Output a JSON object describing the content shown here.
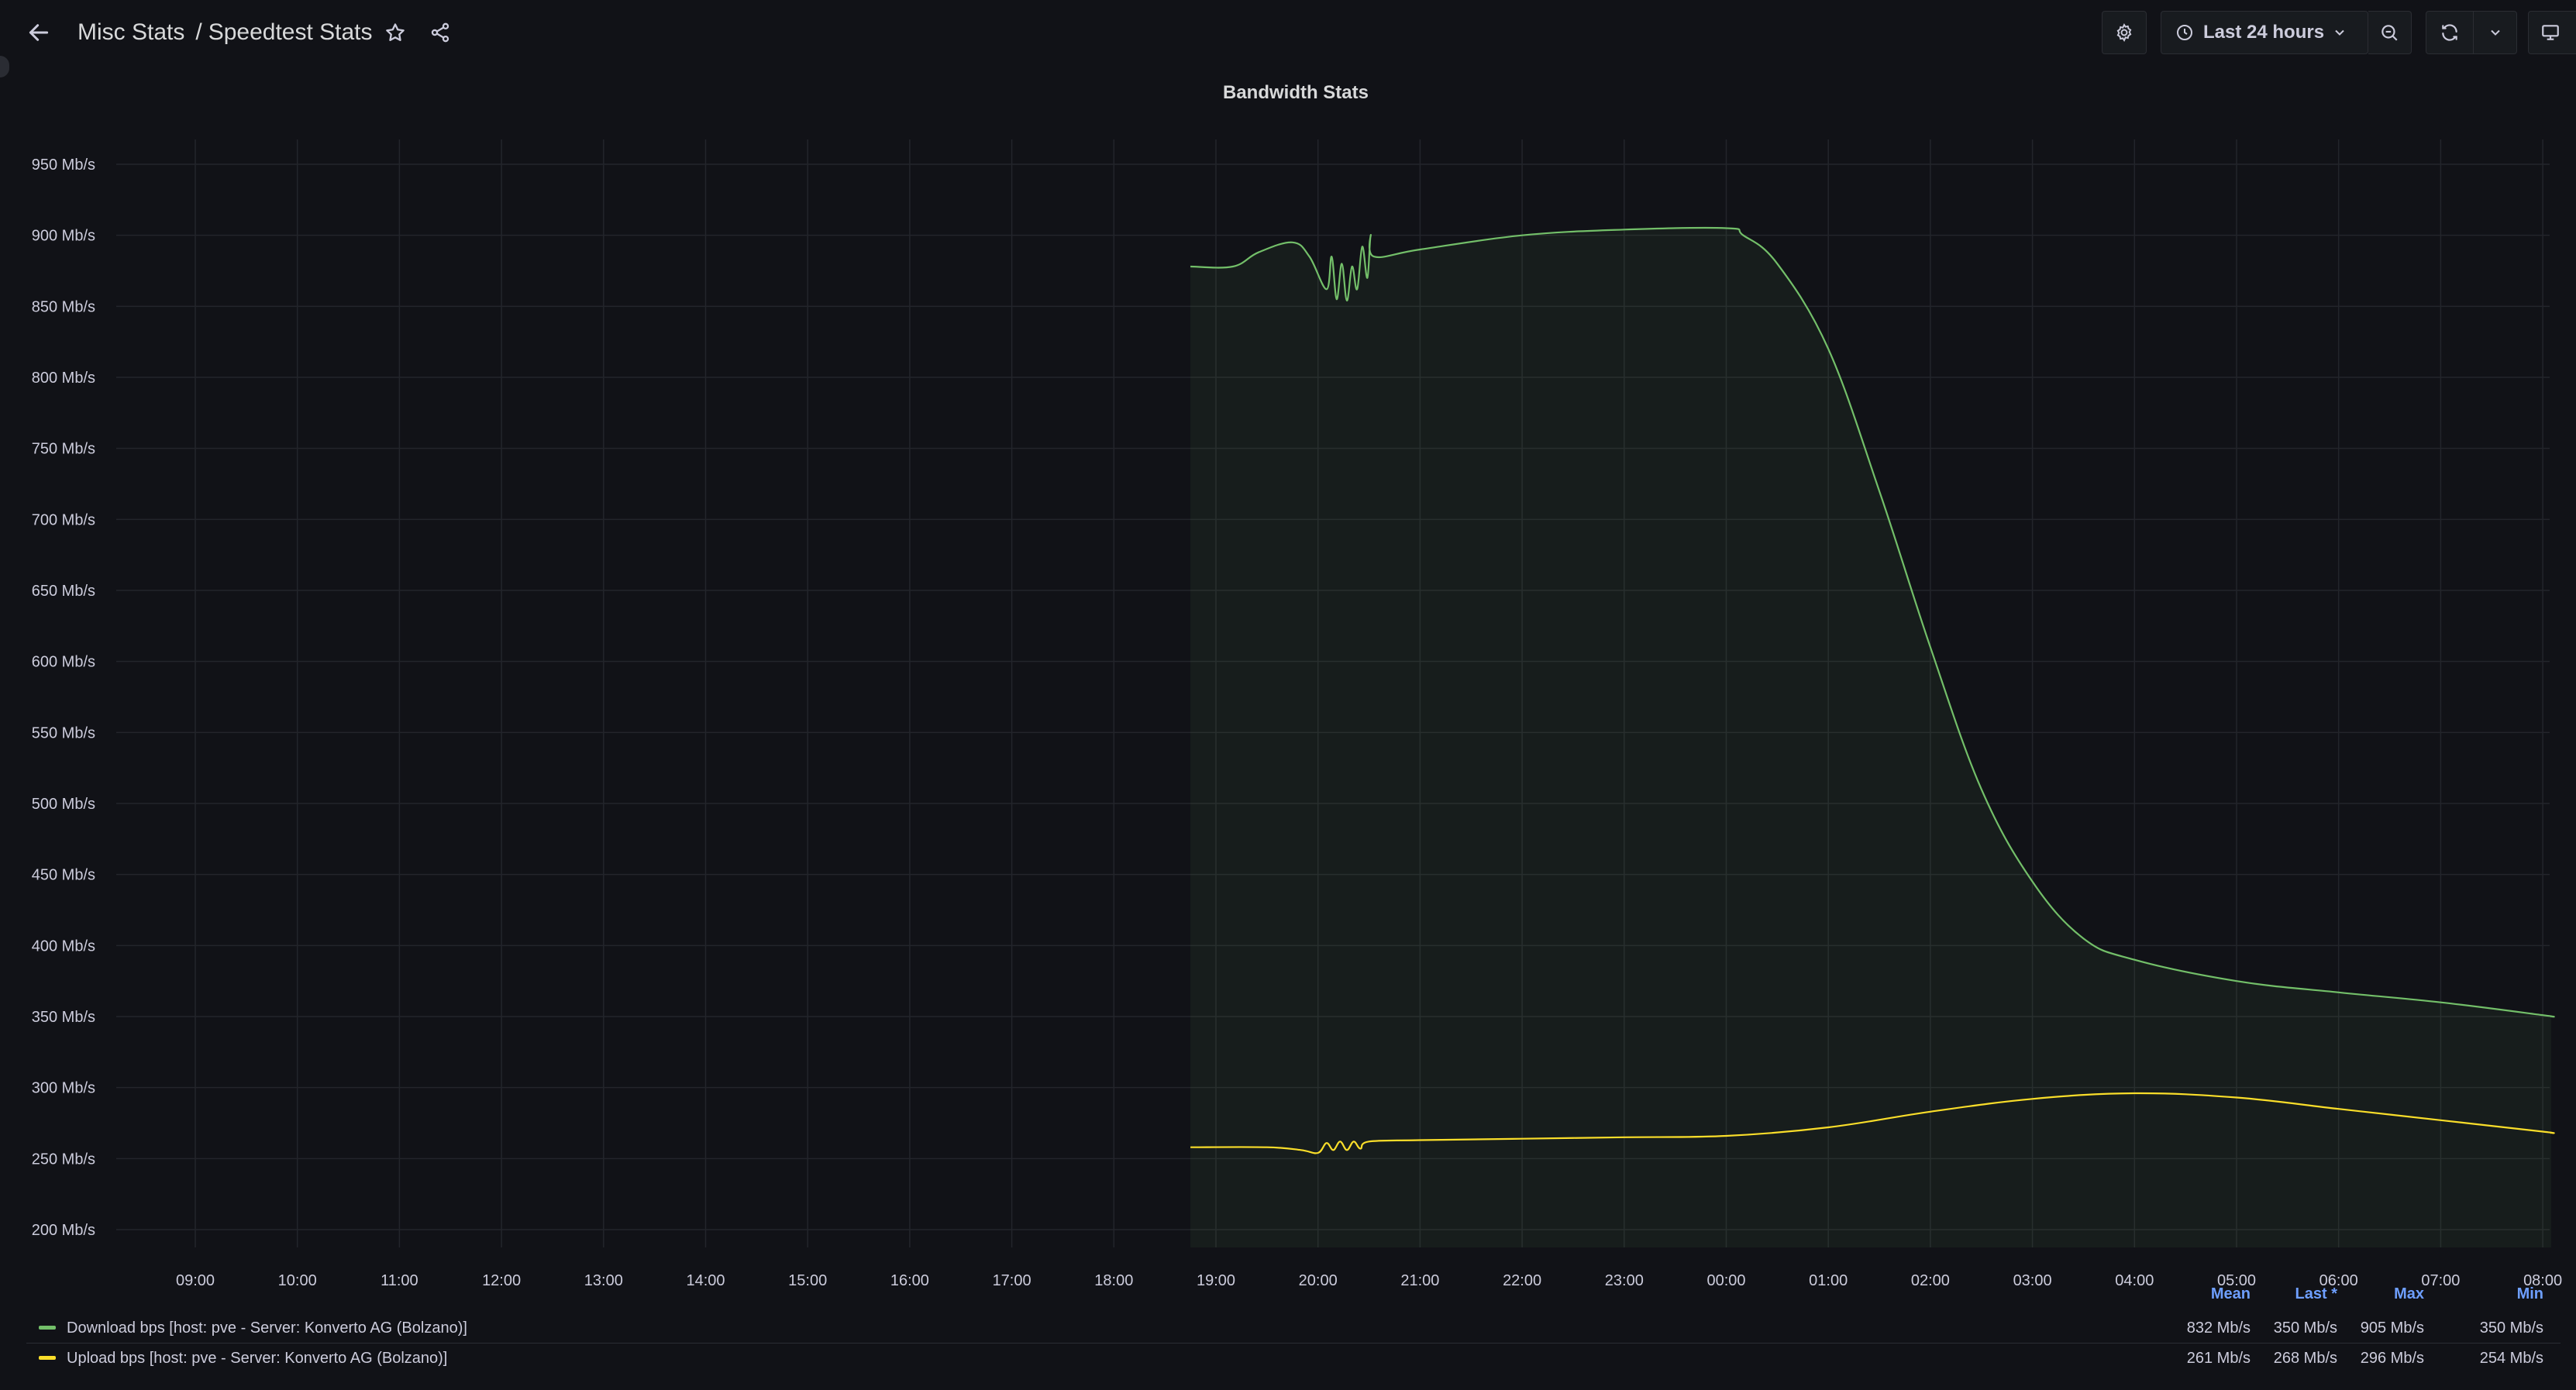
{
  "breadcrumb": {
    "folder": "Misc Stats",
    "separator": "/",
    "dashboard": "Speedtest Stats"
  },
  "toolbar": {
    "time_range": "Last 24 hours"
  },
  "panel": {
    "title": "Bandwidth Stats"
  },
  "colors": {
    "download": "#73bf69",
    "upload": "#fade2a",
    "grid": "#23252b",
    "tick_text": "#ccccdc",
    "legend_header": "#6e9fff"
  },
  "icons": {
    "back": "arrow-left-icon",
    "star": "star-icon",
    "share": "share-icon",
    "settings": "gear-icon",
    "clock": "clock-icon",
    "chevron": "chevron-down-icon",
    "zoom_out": "zoom-out-icon",
    "refresh": "refresh-icon",
    "tv": "tv-mode-icon"
  },
  "legend": {
    "headers": [
      "Mean",
      "Last *",
      "Max",
      "Min"
    ],
    "rows": [
      {
        "name": "Download bps [host: pve - Server: Konverto AG (Bolzano)]",
        "values": [
          "832 Mb/s",
          "350 Mb/s",
          "905 Mb/s",
          "350 Mb/s"
        ]
      },
      {
        "name": "Upload bps [host: pve - Server: Konverto AG (Bolzano)]",
        "values": [
          "261 Mb/s",
          "268 Mb/s",
          "296 Mb/s",
          "254 Mb/s"
        ]
      }
    ]
  },
  "chart_data": {
    "type": "line",
    "title": "Bandwidth Stats",
    "xlabel": "",
    "ylabel": "",
    "y_unit": "Mb/s",
    "ylim": [
      200,
      950
    ],
    "xlim": [
      "08:35",
      "08:05 (+1 day)"
    ],
    "grid": true,
    "legend_position": "bottom",
    "x_ticks": [
      "09:00",
      "10:00",
      "11:00",
      "12:00",
      "13:00",
      "14:00",
      "15:00",
      "16:00",
      "17:00",
      "18:00",
      "19:00",
      "20:00",
      "21:00",
      "22:00",
      "23:00",
      "00:00",
      "01:00",
      "02:00",
      "03:00",
      "04:00",
      "05:00",
      "06:00",
      "07:00",
      "08:00"
    ],
    "y_ticks": [
      "200 Mb/s",
      "250 Mb/s",
      "300 Mb/s",
      "350 Mb/s",
      "400 Mb/s",
      "450 Mb/s",
      "500 Mb/s",
      "550 Mb/s",
      "600 Mb/s",
      "650 Mb/s",
      "700 Mb/s",
      "750 Mb/s",
      "800 Mb/s",
      "850 Mb/s",
      "900 Mb/s",
      "950 Mb/s"
    ],
    "series": [
      {
        "name": "Download bps [host: pve - Server: Konverto AG (Bolzano)]",
        "fill": true,
        "points": [
          [
            "18:45",
            878
          ],
          [
            "19:10",
            878
          ],
          [
            "19:25",
            888
          ],
          [
            "19:45",
            895
          ],
          [
            "19:55",
            885
          ],
          [
            "20:05",
            862
          ],
          [
            "20:08",
            885
          ],
          [
            "20:11",
            855
          ],
          [
            "20:14",
            880
          ],
          [
            "20:17",
            854
          ],
          [
            "20:20",
            878
          ],
          [
            "20:23",
            862
          ],
          [
            "20:26",
            892
          ],
          [
            "20:29",
            870
          ],
          [
            "20:31",
            900
          ],
          [
            "20:33",
            885
          ],
          [
            "21:00",
            890
          ],
          [
            "22:00",
            900
          ],
          [
            "23:00",
            904
          ],
          [
            "00:00",
            905
          ],
          [
            "00:10",
            900
          ],
          [
            "00:30",
            880
          ],
          [
            "01:00",
            820
          ],
          [
            "01:30",
            720
          ],
          [
            "02:00",
            610
          ],
          [
            "02:30",
            510
          ],
          [
            "03:00",
            445
          ],
          [
            "03:30",
            405
          ],
          [
            "04:00",
            390
          ],
          [
            "05:00",
            375
          ],
          [
            "06:00",
            367
          ],
          [
            "07:00",
            360
          ],
          [
            "08:00",
            351
          ],
          [
            "08:05",
            350
          ]
        ]
      },
      {
        "name": "Upload bps [host: pve - Server: Konverto AG (Bolzano)]",
        "fill": false,
        "points": [
          [
            "18:45",
            258
          ],
          [
            "19:30",
            258
          ],
          [
            "19:50",
            256
          ],
          [
            "20:00",
            254
          ],
          [
            "20:05",
            261
          ],
          [
            "20:09",
            256
          ],
          [
            "20:13",
            262
          ],
          [
            "20:17",
            256
          ],
          [
            "20:21",
            262
          ],
          [
            "20:25",
            257
          ],
          [
            "20:30",
            262
          ],
          [
            "21:00",
            263
          ],
          [
            "22:00",
            264
          ],
          [
            "23:00",
            265
          ],
          [
            "00:00",
            266
          ],
          [
            "01:00",
            272
          ],
          [
            "02:00",
            283
          ],
          [
            "03:00",
            292
          ],
          [
            "04:00",
            296
          ],
          [
            "05:00",
            293
          ],
          [
            "06:00",
            285
          ],
          [
            "07:00",
            277
          ],
          [
            "08:00",
            269
          ],
          [
            "08:05",
            268
          ]
        ]
      }
    ]
  }
}
